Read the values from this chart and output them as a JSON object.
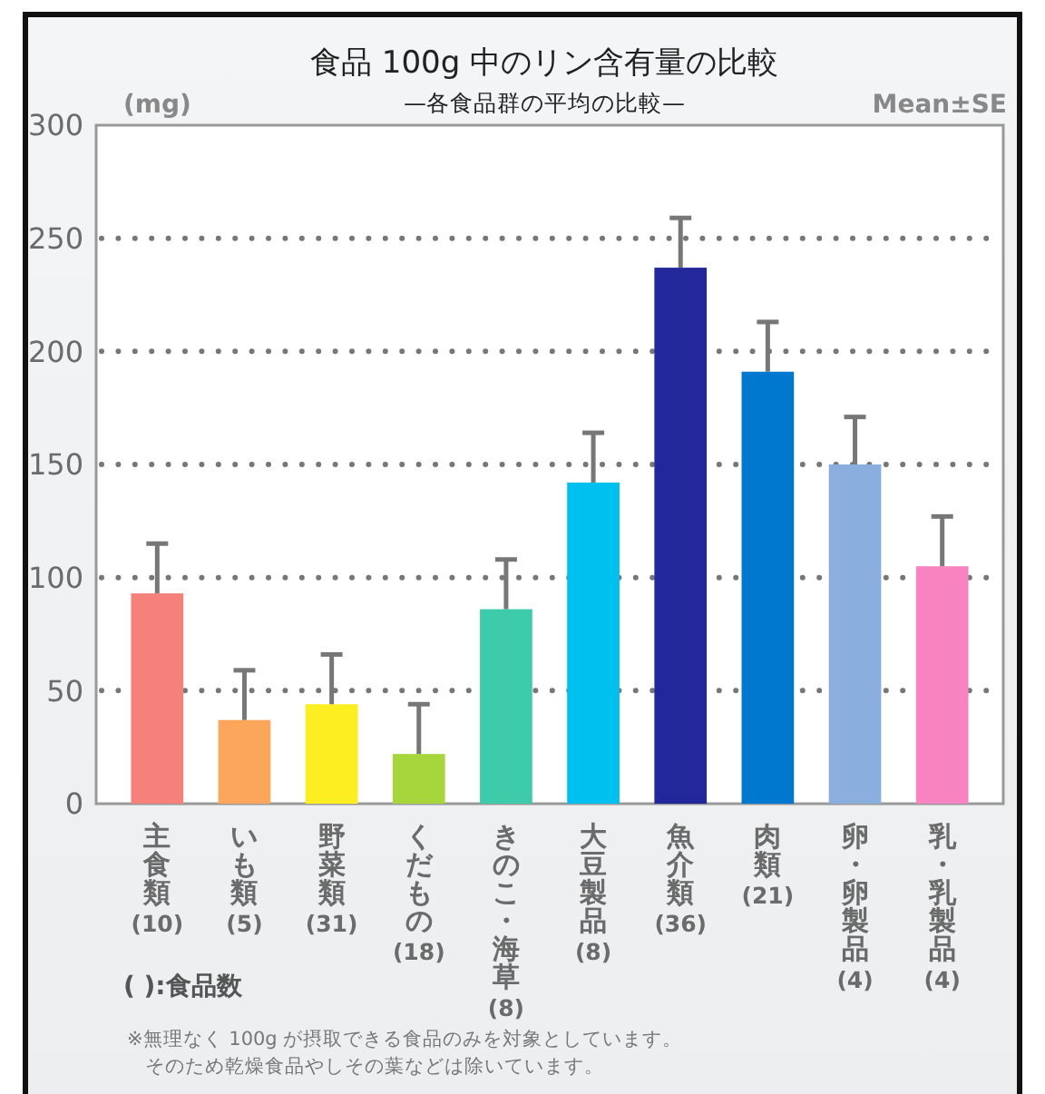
{
  "chart_data": {
    "type": "bar",
    "title": "食品 100g 中のリン含有量の比較",
    "subtitle": "—各食品群の平均の比較—",
    "ylabel": "(mg)",
    "categories": [
      "主食類 (10)",
      "いも類 (5)",
      "野菜類 (31)",
      "くだもの (18)",
      "きのこ・海草 (8)",
      "大豆製品 (8)",
      "魚介類 (36)",
      "肉類 (21)",
      "卵・卵製品 (4)",
      "乳・乳製品 (4)"
    ],
    "values": [
      93,
      37,
      44,
      22,
      86,
      142,
      237,
      191,
      150,
      105
    ],
    "colors": [
      "#f6807a",
      "#fba65a",
      "#fdee22",
      "#a6d63c",
      "#3ecba9",
      "#00c0ef",
      "#22289a",
      "#0078d0",
      "#8aaedd",
      "#f784c0"
    ],
    "errors": [
      [
        93,
        115
      ],
      [
        37,
        59
      ],
      [
        44,
        66
      ],
      [
        22,
        44
      ],
      [
        86,
        108
      ],
      [
        142,
        164
      ],
      [
        237,
        259
      ],
      [
        191,
        213
      ],
      [
        150,
        171
      ],
      [
        105,
        127
      ]
    ],
    "ylim": [
      0,
      300
    ],
    "yticks": [
      0,
      50,
      100,
      150,
      200,
      250,
      300
    ],
    "grid": "y",
    "annotations": [
      "Mean±SE",
      "( ):食品数",
      "※無理なく 100g が摂取できる食品のみを対象としています。",
      "そのため乾燥食品やしその葉などは除いています。"
    ]
  }
}
